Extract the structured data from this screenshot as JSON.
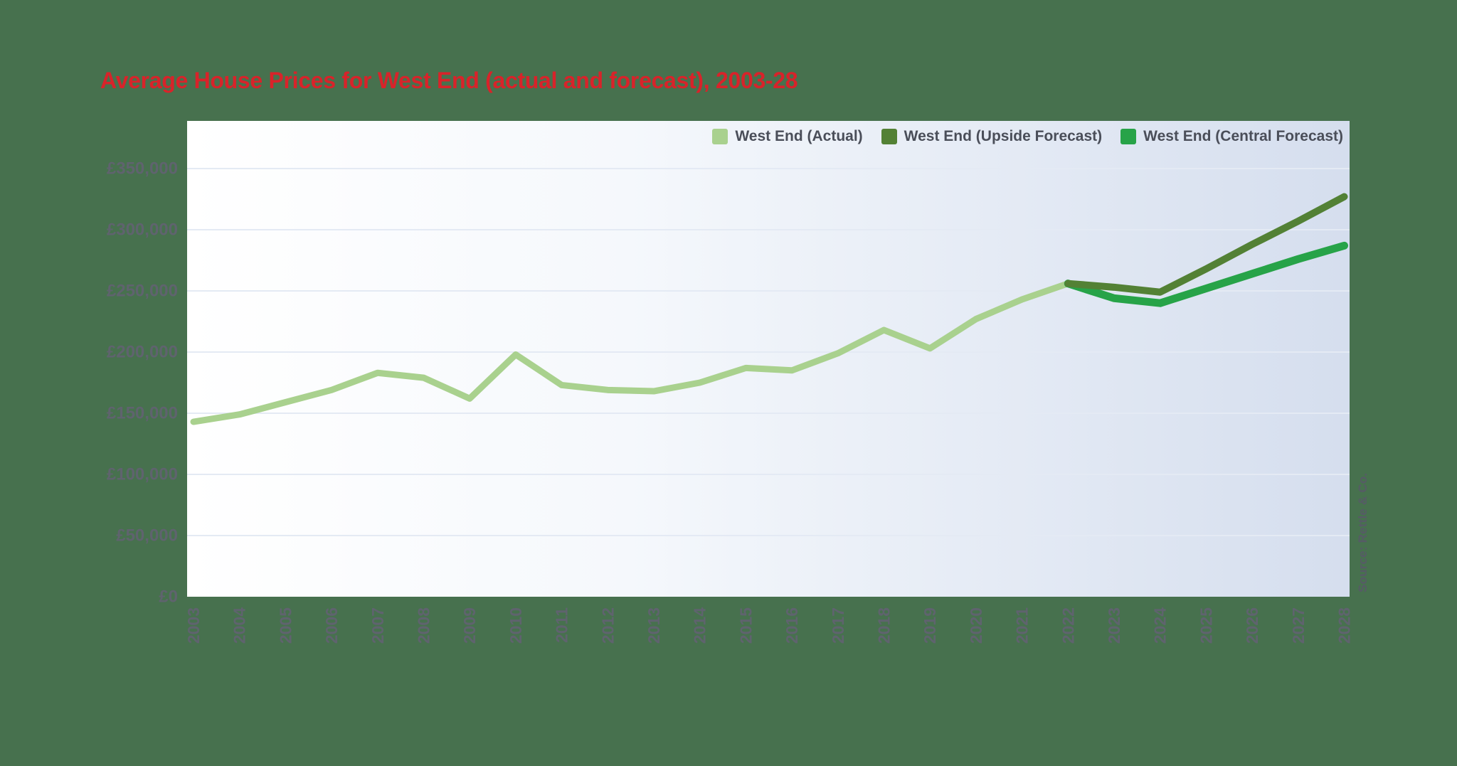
{
  "title": "Average House Prices for West End (actual and forecast), 2003-28",
  "source": "Source: Rettle & Co.",
  "style": {
    "page_bg": "#47714e",
    "title_color": "#d8232a",
    "axis_text_color": "#5f636e",
    "grid_color": "#e4eaf4",
    "panel_gradient": [
      "#ffffff",
      "#f5f8fc",
      "#d5deee"
    ],
    "legend_text_color": "#4a4e59",
    "source_text_color": "#565b66",
    "series_colors": {
      "actual": "#a9d18e",
      "upside_forecast": "#538135",
      "central_forecast": "#27a348"
    }
  },
  "chart_data": {
    "type": "line",
    "title": "Average House Prices for West End (actual and forecast), 2003-28",
    "xlabel": "",
    "ylabel": "",
    "x": [
      2003,
      2004,
      2005,
      2006,
      2007,
      2008,
      2009,
      2010,
      2011,
      2012,
      2013,
      2014,
      2015,
      2016,
      2017,
      2018,
      2019,
      2020,
      2021,
      2022,
      2023,
      2024,
      2025,
      2026,
      2027,
      2028
    ],
    "ylim": [
      0,
      385000
    ],
    "yticks": [
      0,
      50000,
      100000,
      150000,
      200000,
      250000,
      300000,
      350000
    ],
    "ytick_labels": [
      "£0",
      "£50,000",
      "£100,000",
      "£150,000",
      "£200,000",
      "£250,000",
      "£300,000",
      "£350,000"
    ],
    "grid": "horizontal",
    "legend_position": "top-right-inside",
    "series": [
      {
        "name": "West End (Actual)",
        "color": "#a9d18e",
        "role": "actual",
        "values": [
          143000,
          149000,
          159000,
          169000,
          183000,
          179000,
          162000,
          198000,
          173000,
          169000,
          168000,
          175000,
          187000,
          185000,
          199000,
          218000,
          203000,
          227000,
          243000,
          256000,
          null,
          null,
          null,
          null,
          null,
          null
        ]
      },
      {
        "name": "West End (Upside Forecast)",
        "color": "#538135",
        "role": "upside-forecast",
        "values": [
          null,
          null,
          null,
          null,
          null,
          null,
          null,
          null,
          null,
          null,
          null,
          null,
          null,
          null,
          null,
          null,
          null,
          null,
          null,
          256000,
          253000,
          249000,
          268000,
          288000,
          307000,
          327000
        ]
      },
      {
        "name": "West End (Central Forecast)",
        "color": "#27a348",
        "role": "central-forecast",
        "values": [
          null,
          null,
          null,
          null,
          null,
          null,
          null,
          null,
          null,
          null,
          null,
          null,
          null,
          null,
          null,
          null,
          null,
          null,
          null,
          256000,
          244000,
          240000,
          252000,
          264000,
          276000,
          287000
        ]
      }
    ]
  }
}
